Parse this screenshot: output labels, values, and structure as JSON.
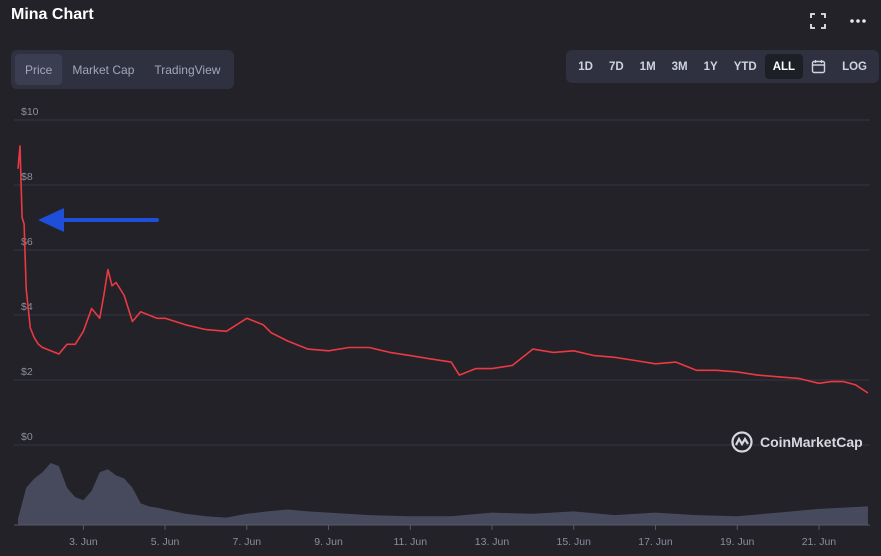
{
  "header": {
    "title": "Mina Chart",
    "fullscreen_icon": "fullscreen-icon",
    "more_icon": "more-dots-icon"
  },
  "tabs": [
    {
      "label": "Price",
      "active": true
    },
    {
      "label": "Market Cap",
      "active": false
    },
    {
      "label": "TradingView",
      "active": false
    }
  ],
  "ranges": [
    {
      "label": "1D",
      "active": false
    },
    {
      "label": "7D",
      "active": false
    },
    {
      "label": "1M",
      "active": false
    },
    {
      "label": "3M",
      "active": false
    },
    {
      "label": "1Y",
      "active": false
    },
    {
      "label": "YTD",
      "active": false
    },
    {
      "label": "ALL",
      "active": true
    },
    {
      "label": "",
      "icon": "calendar-icon",
      "active": false
    },
    {
      "label": "LOG",
      "active": false
    }
  ],
  "watermark": {
    "text": "CoinMarketCap",
    "icon": "coinmarketcap-logo-icon"
  },
  "annotation": {
    "icon": "arrow-left-icon",
    "color": "#1f4fd8"
  },
  "chart_data": {
    "type": "line",
    "line_color": "#ea3943",
    "volume_color": "#474a5c",
    "ylim": [
      0,
      10
    ],
    "yticks": [
      "$0",
      "$2",
      "$4",
      "$6",
      "$8",
      "$10"
    ],
    "ytick_values": [
      0,
      2,
      4,
      6,
      8,
      10
    ],
    "xticks": [
      "3. Jun",
      "5. Jun",
      "7. Jun",
      "9. Jun",
      "11. Jun",
      "13. Jun",
      "15. Jun",
      "17. Jun",
      "19. Jun",
      "21. Jun"
    ],
    "xtick_days": [
      3,
      5,
      7,
      9,
      11,
      13,
      15,
      17,
      19,
      21
    ],
    "xlim_days": [
      1.4,
      22.25
    ],
    "grid": true,
    "series": [
      {
        "x_days": [
          1.4,
          1.45,
          1.5,
          1.55,
          1.6,
          1.7,
          1.8,
          1.9,
          2.0,
          2.2,
          2.4,
          2.6,
          2.8,
          3.0,
          3.2,
          3.4,
          3.5,
          3.6,
          3.7,
          3.8,
          3.9,
          4.0,
          4.2,
          4.4,
          4.6,
          4.8,
          5.0,
          5.5,
          6.0,
          6.5,
          7.0,
          7.2,
          7.4,
          7.6,
          8.0,
          8.5,
          9.0,
          9.5,
          10.0,
          10.5,
          11.0,
          11.5,
          12.0,
          12.2,
          12.4,
          12.6,
          13.0,
          13.5,
          14.0,
          14.5,
          15.0,
          15.5,
          16.0,
          16.5,
          17.0,
          17.5,
          18.0,
          18.5,
          19.0,
          19.5,
          20.0,
          20.5,
          21.0,
          21.3,
          21.6,
          21.9,
          22.2
        ],
        "values": [
          8.5,
          9.2,
          7.0,
          6.8,
          4.8,
          3.6,
          3.3,
          3.1,
          3.0,
          2.9,
          2.8,
          3.1,
          3.1,
          3.5,
          4.2,
          3.9,
          4.6,
          5.4,
          4.9,
          5.0,
          4.8,
          4.6,
          3.8,
          4.1,
          4.0,
          3.9,
          3.9,
          3.7,
          3.55,
          3.5,
          3.9,
          3.8,
          3.7,
          3.45,
          3.2,
          2.95,
          2.9,
          3.0,
          3.0,
          2.85,
          2.75,
          2.65,
          2.55,
          2.15,
          2.25,
          2.35,
          2.35,
          2.45,
          2.95,
          2.85,
          2.9,
          2.75,
          2.7,
          2.6,
          2.5,
          2.55,
          2.3,
          2.3,
          2.25,
          2.15,
          2.1,
          2.05,
          1.9,
          1.95,
          1.95,
          1.85,
          1.6
        ]
      }
    ],
    "volume": {
      "x_days": [
        1.4,
        1.6,
        1.8,
        2.0,
        2.2,
        2.4,
        2.6,
        2.8,
        3.0,
        3.2,
        3.4,
        3.6,
        3.8,
        4.0,
        4.2,
        4.4,
        4.6,
        4.8,
        5.0,
        5.5,
        6.0,
        6.5,
        7.0,
        7.5,
        8.0,
        8.5,
        9.0,
        10.0,
        11.0,
        12.0,
        13.0,
        14.0,
        15.0,
        16.0,
        17.0,
        18.0,
        19.0,
        20.0,
        21.0,
        22.2
      ],
      "values": [
        0.1,
        0.6,
        0.75,
        0.85,
        1.0,
        0.95,
        0.6,
        0.45,
        0.4,
        0.55,
        0.85,
        0.9,
        0.8,
        0.75,
        0.6,
        0.35,
        0.3,
        0.28,
        0.25,
        0.18,
        0.14,
        0.12,
        0.18,
        0.22,
        0.25,
        0.22,
        0.2,
        0.16,
        0.14,
        0.14,
        0.2,
        0.18,
        0.22,
        0.16,
        0.2,
        0.16,
        0.14,
        0.2,
        0.26,
        0.3
      ]
    }
  }
}
